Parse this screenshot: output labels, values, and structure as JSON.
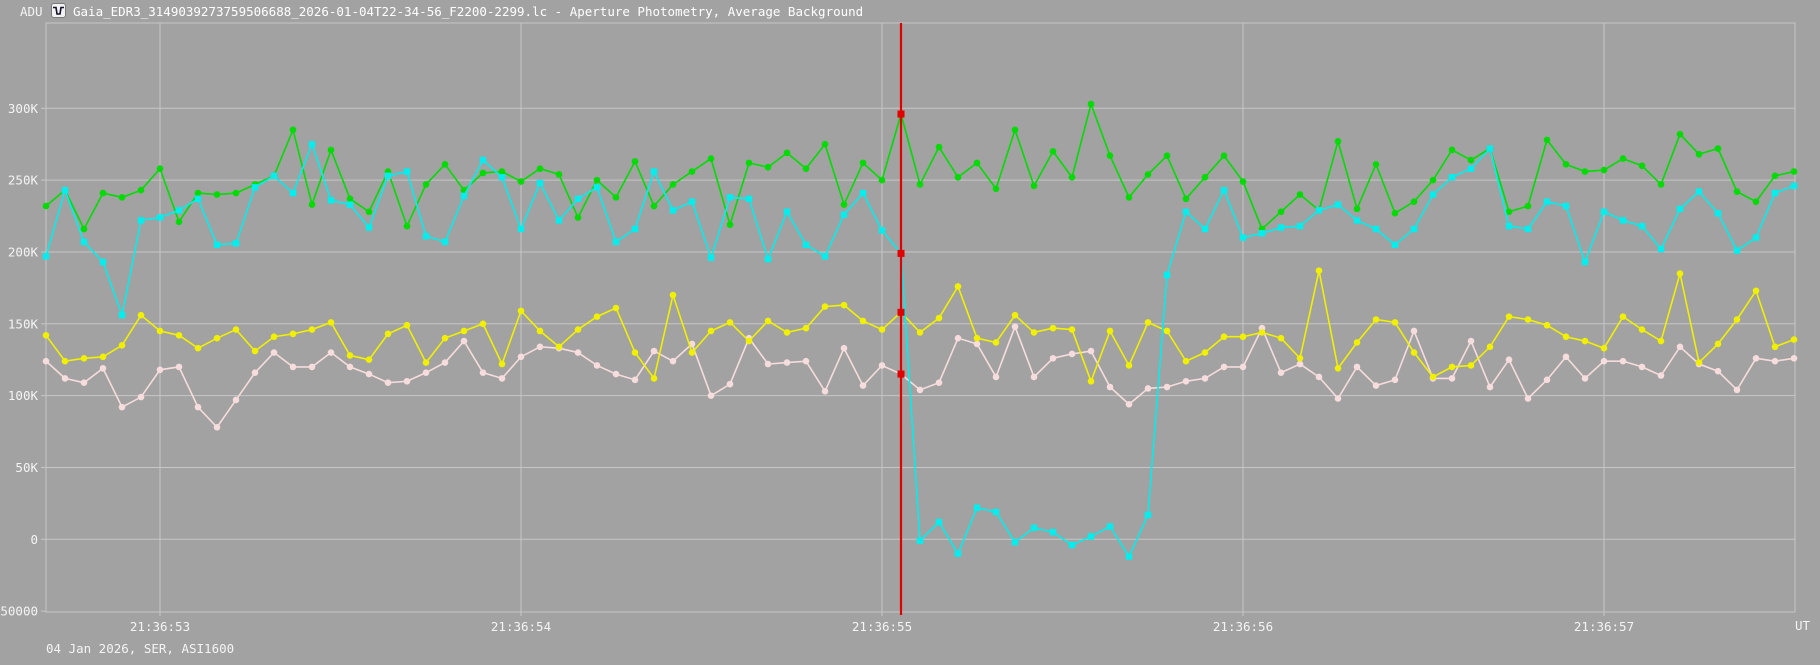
{
  "header": {
    "y_unit": "ADU",
    "title": "Gaia_EDR3_3149039273759506688_2026-01-04T22-34-56_F2200-2299.lc - Aperture Photometry, Average Background"
  },
  "footer": {
    "session_info": "04 Jan 2026, SER, ASI1600",
    "x_unit": "UT"
  },
  "chart_data": {
    "type": "line",
    "title": "Gaia_EDR3_3149039273759506688_2026-01-04T22-34-56_F2200-2299.lc - Aperture Photometry, Average Background",
    "ylabel": "ADU",
    "xlabel": "UT",
    "grid": true,
    "legend": "none",
    "ylim_kadu": [
      -50,
      359
    ],
    "y_ticks": [
      {
        "label": "300K",
        "kadu": 300
      },
      {
        "label": "250K",
        "kadu": 250
      },
      {
        "label": "200K",
        "kadu": 200
      },
      {
        "label": "150K",
        "kadu": 150
      },
      {
        "label": "100K",
        "kadu": 100
      },
      {
        "label": "50K",
        "kadu": 50
      },
      {
        "label": "0",
        "kadu": 0
      },
      {
        "label": "-50000",
        "kadu": -50
      }
    ],
    "x_ticks": [
      {
        "label": "21:36:53",
        "index": 6
      },
      {
        "label": "21:36:54",
        "index": 25
      },
      {
        "label": "21:36:55",
        "index": 44
      },
      {
        "label": "21:36:56",
        "index": 63
      },
      {
        "label": "21:36:57",
        "index": 82
      }
    ],
    "n_points": 93,
    "frames_per_second": 19,
    "cursor": {
      "index": 45,
      "color": "#e00000",
      "marker_values_kadu": [
        296,
        199,
        158,
        115
      ]
    },
    "colors": {
      "background": "#a2a2a2",
      "grid": "#c6c6c6",
      "text": "#f4f4f4",
      "cursor": "#e00000"
    },
    "series": [
      {
        "name": "target-green",
        "color": "#00dc00",
        "marker": "circle",
        "values_kadu": [
          232,
          243,
          216,
          241,
          238,
          243,
          258,
          221,
          241,
          240,
          241,
          247,
          253,
          285,
          233,
          271,
          237,
          228,
          256,
          218,
          247,
          261,
          243,
          255,
          256,
          249,
          258,
          254,
          224,
          250,
          238,
          263,
          232,
          247,
          256,
          265,
          219,
          262,
          259,
          269,
          258,
          275,
          233,
          262,
          250,
          296,
          247,
          273,
          252,
          262,
          244,
          285,
          246,
          270,
          252,
          303,
          267,
          238,
          254,
          267,
          237,
          252,
          267,
          249,
          216,
          228,
          240,
          229,
          277,
          230,
          261,
          227,
          235,
          250,
          271,
          264,
          272,
          228,
          232,
          278,
          261,
          256,
          257,
          265,
          260,
          247,
          282,
          268,
          272,
          242,
          235,
          253,
          256
        ]
      },
      {
        "name": "target-cyan",
        "color": "#00eeee",
        "marker": "square",
        "values_kadu": [
          197,
          243,
          207,
          193,
          156,
          222,
          224,
          229,
          237,
          205,
          206,
          245,
          253,
          241,
          275,
          236,
          233,
          217,
          253,
          256,
          211,
          207,
          239,
          264,
          252,
          216,
          248,
          222,
          237,
          245,
          207,
          216,
          256,
          229,
          235,
          196,
          238,
          237,
          195,
          228,
          205,
          197,
          226,
          241,
          215,
          199,
          -1,
          12,
          -10,
          22,
          19,
          -2,
          8,
          5,
          -4,
          2,
          9,
          -12,
          17,
          184,
          228,
          216,
          243,
          210,
          213,
          217,
          218,
          229,
          233,
          222,
          216,
          205,
          216,
          240,
          252,
          258,
          272,
          218,
          216,
          235,
          232,
          193,
          228,
          222,
          218,
          202,
          230,
          242,
          227,
          201,
          210,
          241,
          246
        ]
      },
      {
        "name": "target-yellow",
        "color": "#f0f000",
        "marker": "circle",
        "values_kadu": [
          142,
          124,
          126,
          127,
          135,
          156,
          145,
          142,
          133,
          140,
          146,
          131,
          141,
          143,
          146,
          151,
          128,
          125,
          143,
          149,
          123,
          140,
          145,
          150,
          122,
          159,
          145,
          134,
          146,
          155,
          161,
          130,
          112,
          170,
          130,
          145,
          151,
          138,
          152,
          144,
          147,
          162,
          163,
          152,
          146,
          158,
          144,
          154,
          176,
          140,
          137,
          156,
          144,
          147,
          146,
          110,
          145,
          121,
          151,
          145,
          124,
          130,
          141,
          141,
          144,
          140,
          126,
          187,
          119,
          137,
          153,
          151,
          130,
          113,
          120,
          121,
          134,
          155,
          153,
          149,
          141,
          138,
          133,
          155,
          146,
          138,
          185,
          123,
          136,
          153,
          173,
          134,
          139
        ]
      },
      {
        "name": "target-pink",
        "color": "#f6dcdc",
        "marker": "circle",
        "values_kadu": [
          124,
          112,
          109,
          119,
          92,
          99,
          118,
          120,
          92,
          78,
          97,
          116,
          130,
          120,
          120,
          130,
          120,
          115,
          109,
          110,
          116,
          123,
          138,
          116,
          112,
          127,
          134,
          133,
          130,
          121,
          115,
          111,
          131,
          124,
          136,
          100,
          108,
          140,
          122,
          123,
          124,
          103,
          133,
          107,
          121,
          115,
          104,
          109,
          140,
          136,
          113,
          148,
          113,
          126,
          129,
          131,
          106,
          94,
          105,
          106,
          110,
          112,
          120,
          120,
          147,
          116,
          122,
          113,
          98,
          120,
          107,
          111,
          145,
          112,
          112,
          138,
          106,
          125,
          98,
          111,
          127,
          112,
          124,
          124,
          120,
          114,
          134,
          122,
          117,
          104,
          126,
          124,
          126
        ]
      }
    ]
  }
}
